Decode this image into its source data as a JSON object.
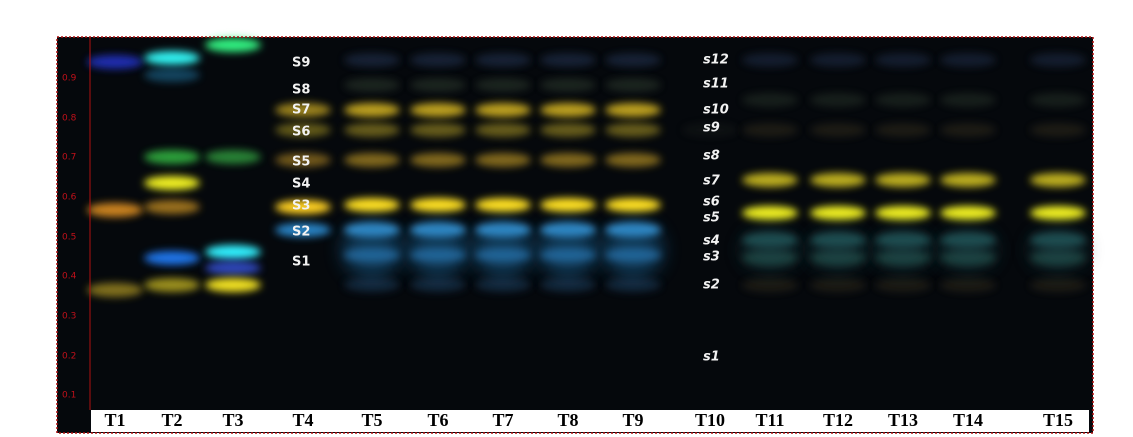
{
  "y_axis_labels": [
    "0.9",
    "0.8",
    "0.7",
    "0.6",
    "0.5",
    "0.4",
    "0.3",
    "0.2",
    "0.1"
  ],
  "lanes": [
    "T1",
    "T2",
    "T3",
    "T4",
    "T5",
    "T6",
    "T7",
    "T8",
    "T9",
    "T10",
    "T11",
    "T12",
    "T13",
    "T14",
    "T15"
  ],
  "standard_labels_upper": [
    "S9",
    "S8",
    "S7",
    "S6",
    "S5",
    "S4",
    "S3",
    "S2",
    "S1"
  ],
  "standard_labels_lower": [
    "s12",
    "s11",
    "s10",
    "s9",
    "s8",
    "s7",
    "s6",
    "s5",
    "s4",
    "s3",
    "s2",
    "s1"
  ]
}
